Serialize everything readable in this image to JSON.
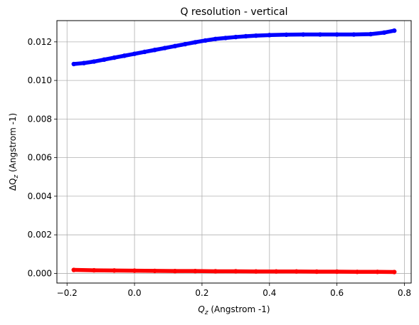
{
  "chart_data": {
    "type": "scatter",
    "title": "Q resolution - vertical",
    "xlabel": {
      "prefix": "Q",
      "sub": "z",
      "suffix": " (Angstrom -1)"
    },
    "ylabel": {
      "prefix": "ΔQ",
      "sub": "z",
      "suffix": " (Angstrom -1)"
    },
    "xlim": [
      -0.23,
      0.82
    ],
    "ylim": [
      -0.0005,
      0.0131
    ],
    "xticks": [
      -0.2,
      0.0,
      0.2,
      0.4,
      0.6,
      0.8
    ],
    "xtick_labels": [
      "−0.2",
      "0.0",
      "0.2",
      "0.4",
      "0.6",
      "0.8"
    ],
    "yticks": [
      0.0,
      0.002,
      0.004,
      0.006,
      0.008,
      0.01,
      0.012
    ],
    "ytick_labels": [
      "0.000",
      "0.002",
      "0.004",
      "0.006",
      "0.008",
      "0.010",
      "0.012"
    ],
    "grid": true,
    "series": [
      {
        "color": "#0000ff",
        "x": [
          -0.18,
          -0.15,
          -0.12,
          -0.09,
          -0.06,
          -0.03,
          0.0,
          0.03,
          0.06,
          0.09,
          0.12,
          0.15,
          0.18,
          0.21,
          0.24,
          0.27,
          0.3,
          0.33,
          0.36,
          0.4,
          0.45,
          0.5,
          0.55,
          0.6,
          0.65,
          0.7,
          0.74,
          0.77
        ],
        "y": [
          0.01085,
          0.0109,
          0.01098,
          0.01108,
          0.01118,
          0.01128,
          0.01138,
          0.01148,
          0.01158,
          0.01168,
          0.01178,
          0.01188,
          0.01198,
          0.01207,
          0.01215,
          0.0122,
          0.01225,
          0.01229,
          0.01232,
          0.01235,
          0.01237,
          0.01238,
          0.01238,
          0.01238,
          0.01238,
          0.0124,
          0.01248,
          0.01258
        ]
      },
      {
        "color": "#ff0000",
        "x": [
          -0.18,
          -0.12,
          -0.06,
          0.0,
          0.06,
          0.12,
          0.18,
          0.24,
          0.3,
          0.36,
          0.42,
          0.48,
          0.54,
          0.6,
          0.66,
          0.72,
          0.77
        ],
        "y": [
          0.00018,
          0.00016,
          0.00015,
          0.00014,
          0.00013,
          0.00012,
          0.00012,
          0.00011,
          0.00011,
          0.0001,
          0.0001,
          0.0001,
          9e-05,
          9e-05,
          8e-05,
          8e-05,
          7e-05
        ]
      }
    ]
  }
}
